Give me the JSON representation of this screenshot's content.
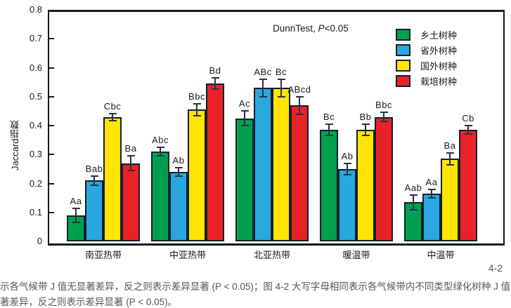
{
  "figure": {
    "page_label": "4-2",
    "caption_line1": "示各气候带 J 值无显著差异，反之则表示差异显著 (P < 0.05)；图 4-2 大写字母相同表示各气候带内不同类型绿化树种 J 值无显",
    "caption_line2": "著差异，反之则表示差异显著 (P < 0.05)。"
  },
  "annotation": {
    "prefix": "DunnTest, ",
    "p_symbol": "P",
    "suffix": "<0.05"
  },
  "chart_data": {
    "type": "bar",
    "title": "",
    "xlabel": "",
    "ylabel": "Jaccard指数",
    "ylim": [
      0,
      0.8
    ],
    "ytick_step": 0.1,
    "ytick_labels": [
      "0.8",
      "0.7",
      "0.6",
      "0.5",
      "0.4",
      "0.3",
      "0.2",
      "0.1",
      "0"
    ],
    "grid": false,
    "legend_position": "top-right-inside",
    "categories": [
      "南亚热带",
      "中亚热带",
      "北亚热带",
      "暖温带",
      "中温带"
    ],
    "series": [
      {
        "name": "乡土树种",
        "color": "#00A14E",
        "values": [
          0.09,
          0.31,
          0.425,
          0.385,
          0.135
        ],
        "errors": [
          0.025,
          0.015,
          0.025,
          0.02,
          0.025
        ],
        "letters": [
          "Aa",
          "Abc",
          "Ac",
          "Bc",
          "Aab"
        ]
      },
      {
        "name": "省外树种",
        "color": "#2AA7DF",
        "values": [
          0.21,
          0.24,
          0.53,
          0.25,
          0.165
        ],
        "errors": [
          0.015,
          0.015,
          0.03,
          0.02,
          0.015
        ],
        "letters": [
          "Bab",
          "Ab",
          "ABc",
          "Ab",
          "Aa"
        ]
      },
      {
        "name": "国外树种",
        "color": "#FFE500",
        "values": [
          0.43,
          0.455,
          0.53,
          0.385,
          0.285
        ],
        "errors": [
          0.012,
          0.02,
          0.03,
          0.02,
          0.02
        ],
        "letters": [
          "Cbc",
          "Bbc",
          "Bc",
          "Bb",
          "Ba"
        ]
      },
      {
        "name": "栽培树种",
        "color": "#EA2227",
        "values": [
          0.27,
          0.545,
          0.47,
          0.43,
          0.385
        ],
        "errors": [
          0.025,
          0.02,
          0.03,
          0.015,
          0.015
        ],
        "letters": [
          "Ba",
          "Bd",
          "ABcd",
          "Bbc",
          "Cb"
        ]
      }
    ]
  }
}
